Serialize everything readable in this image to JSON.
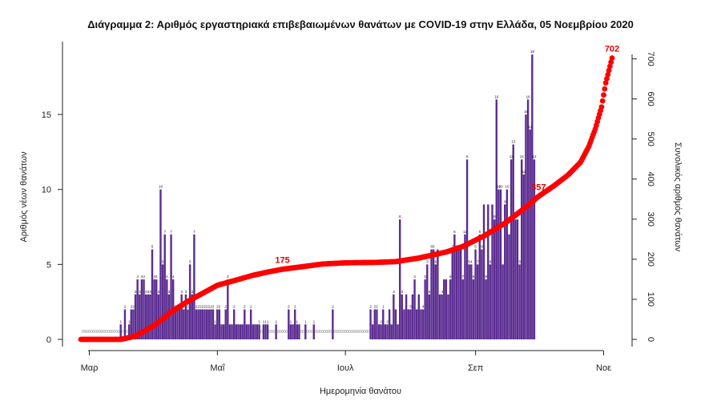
{
  "chart_data": {
    "type": "bar",
    "title": "Διάγραμμα 2: Αριθμός εργαστηριακά επιβεβαιωμένων θανάτων με COVID-19 στην Ελλάδα, 05 Νοεμβρίου 2020",
    "xlabel": "Ημερομηνία θανάτου",
    "ylabel": "Αριθμός νέων θανάτων",
    "y2label": "Συνολικός αριθμός θανάτων",
    "x_ticks": [
      "Μαρ",
      "Μαΐ",
      "Ιουλ",
      "Σεπ",
      "Νοε"
    ],
    "y_ticks": [
      0,
      5,
      10,
      15
    ],
    "y2_ticks": [
      0,
      100,
      200,
      300,
      400,
      500,
      600,
      700
    ],
    "ylim": [
      0,
      19.7
    ],
    "y2lim": [
      0,
      737
    ],
    "colors": {
      "bars": "#5b2c91",
      "zero_markers": "#9a9a9a",
      "cumulative_line": "#ff0000",
      "cumulative_label": "#e00000"
    },
    "series": [
      {
        "type": "bar",
        "x_start": "2020-02-26",
        "x_end": "2020-11-05",
        "values": [
          0,
          0,
          0,
          0,
          0,
          0,
          0,
          0,
          0,
          0,
          0,
          0,
          0,
          0,
          0,
          0,
          0,
          0,
          0,
          1,
          0,
          2,
          0,
          1,
          2,
          2,
          3,
          4,
          3,
          4,
          4,
          3,
          3,
          3,
          6,
          4,
          4,
          3,
          10,
          5,
          7,
          4,
          3,
          7,
          4,
          2,
          2,
          2,
          3,
          2,
          3,
          2,
          5,
          3,
          7,
          2,
          2,
          2,
          2,
          2,
          2,
          2,
          2,
          2,
          1,
          2,
          2,
          1,
          1,
          2,
          4,
          1,
          1,
          2,
          1,
          1,
          1,
          1,
          2,
          1,
          1,
          2,
          1,
          1,
          1,
          1,
          0,
          1,
          1,
          1,
          0,
          0,
          0,
          1,
          0,
          0,
          0,
          0,
          0,
          2,
          1,
          1,
          2,
          1,
          1,
          0,
          0,
          1,
          0,
          0,
          0,
          1,
          0,
          0,
          0,
          0,
          0,
          0,
          0,
          0,
          2,
          0,
          0,
          0,
          0,
          0,
          0,
          0,
          0,
          0,
          0,
          0,
          0,
          0,
          0,
          0,
          0,
          0,
          2,
          1,
          2,
          2,
          1,
          1,
          2,
          1,
          1,
          2,
          1,
          3,
          2,
          1,
          8,
          3,
          2,
          3,
          2,
          2,
          3,
          4,
          2,
          3,
          2,
          2,
          4,
          5,
          3,
          6,
          6,
          5,
          6,
          3,
          3,
          4,
          4,
          3,
          4,
          6,
          7,
          6,
          6,
          6,
          4,
          7,
          12,
          5,
          5,
          4,
          6,
          5,
          7,
          6,
          9,
          4,
          9,
          5,
          9,
          8,
          16,
          10,
          10,
          5,
          9,
          10,
          7,
          12,
          13,
          8,
          8,
          5,
          12,
          11,
          15,
          16,
          14,
          19,
          12
        ],
        "labels": {
          "19": "1",
          "21": "2",
          "23": "1",
          "24": "2",
          "25": "2",
          "26": "3",
          "27": "4",
          "28": "3",
          "29": "4",
          "30": "4",
          "31": "3",
          "32": "3",
          "33": "3",
          "34": "6",
          "35": "4",
          "36": "4",
          "37": "3",
          "38": "10",
          "39": "5",
          "40": "7",
          "41": "4",
          "42": "3",
          "43": "7",
          "44": "4",
          "45": "2",
          "46": "2",
          "47": "2",
          "48": "3",
          "49": "2",
          "50": "3",
          "51": "2",
          "52": "5",
          "53": "3",
          "54": "7",
          "55": "2",
          "56": "2",
          "57": "2",
          "58": "2",
          "59": "2",
          "60": "2",
          "61": "2",
          "62": "2",
          "63": "2",
          "64": "1",
          "65": "2",
          "66": "2",
          "69": "2",
          "70": "4",
          "73": "2",
          "78": "2",
          "81": "2",
          "85": "1",
          "87": "1",
          "88": "1",
          "89": "1",
          "93": "1",
          "99": "2",
          "100": "1",
          "102": "2",
          "103": "1",
          "107": "1",
          "111": "1",
          "120": "2",
          "138": "2",
          "140": "2",
          "141": "2",
          "143": "2",
          "144": "1",
          "146": "2",
          "149": "3",
          "152": "8",
          "153": "3",
          "157": "3",
          "159": "4",
          "163": "4",
          "164": "5",
          "165": "3",
          "166": "6",
          "167": "6",
          "168": "5",
          "169": "6",
          "172": "4",
          "176": "6",
          "177": "7",
          "178": "6",
          "179": "6",
          "180": "6",
          "181": "4",
          "182": "7",
          "183": "12",
          "184": "5",
          "185": "5",
          "186": "4",
          "187": "6",
          "188": "5",
          "189": "7",
          "190": "6",
          "191": "9",
          "193": "9",
          "195": "9",
          "197": "8",
          "198": "16",
          "199": "10",
          "200": "10",
          "202": "9",
          "203": "10",
          "205": "12",
          "206": "13",
          "209": "5",
          "210": "12",
          "211": "11",
          "212": "15",
          "213": "16",
          "214": "14",
          "215": "19",
          "216": "12"
        }
      },
      {
        "type": "line",
        "name": "cumulative",
        "start": "2020-02-26",
        "end": "2020-11-05",
        "points": [
          [
            "2020-02-26",
            0
          ],
          [
            "2020-03-16",
            0
          ],
          [
            "2020-03-23",
            8
          ],
          [
            "2020-04-01",
            35
          ],
          [
            "2020-04-10",
            72
          ],
          [
            "2020-04-17",
            95
          ],
          [
            "2020-04-24",
            115
          ],
          [
            "2020-05-01",
            135
          ],
          [
            "2020-05-10",
            148
          ],
          [
            "2020-05-18",
            160
          ],
          [
            "2020-05-25",
            168
          ],
          [
            "2020-06-01",
            175
          ],
          [
            "2020-06-10",
            181
          ],
          [
            "2020-06-20",
            188
          ],
          [
            "2020-07-01",
            191
          ],
          [
            "2020-07-15",
            192
          ],
          [
            "2020-07-25",
            194
          ],
          [
            "2020-08-05",
            203
          ],
          [
            "2020-08-18",
            218
          ],
          [
            "2020-08-26",
            232
          ],
          [
            "2020-09-05",
            258
          ],
          [
            "2020-09-15",
            290
          ],
          [
            "2020-09-25",
            330
          ],
          [
            "2020-10-01",
            357
          ],
          [
            "2020-10-08",
            382
          ],
          [
            "2020-10-15",
            410
          ],
          [
            "2020-10-21",
            442
          ],
          [
            "2020-10-25",
            482
          ],
          [
            "2020-10-28",
            525
          ],
          [
            "2020-10-31",
            580
          ],
          [
            "2020-11-02",
            640
          ],
          [
            "2020-11-05",
            702
          ]
        ]
      }
    ],
    "annotations": [
      {
        "text": "175",
        "date": "2020-06-01",
        "value": 175
      },
      {
        "text": "357",
        "date": "2020-10-01",
        "value": 357
      },
      {
        "text": "702",
        "date": "2020-11-05",
        "value": 702
      }
    ]
  }
}
